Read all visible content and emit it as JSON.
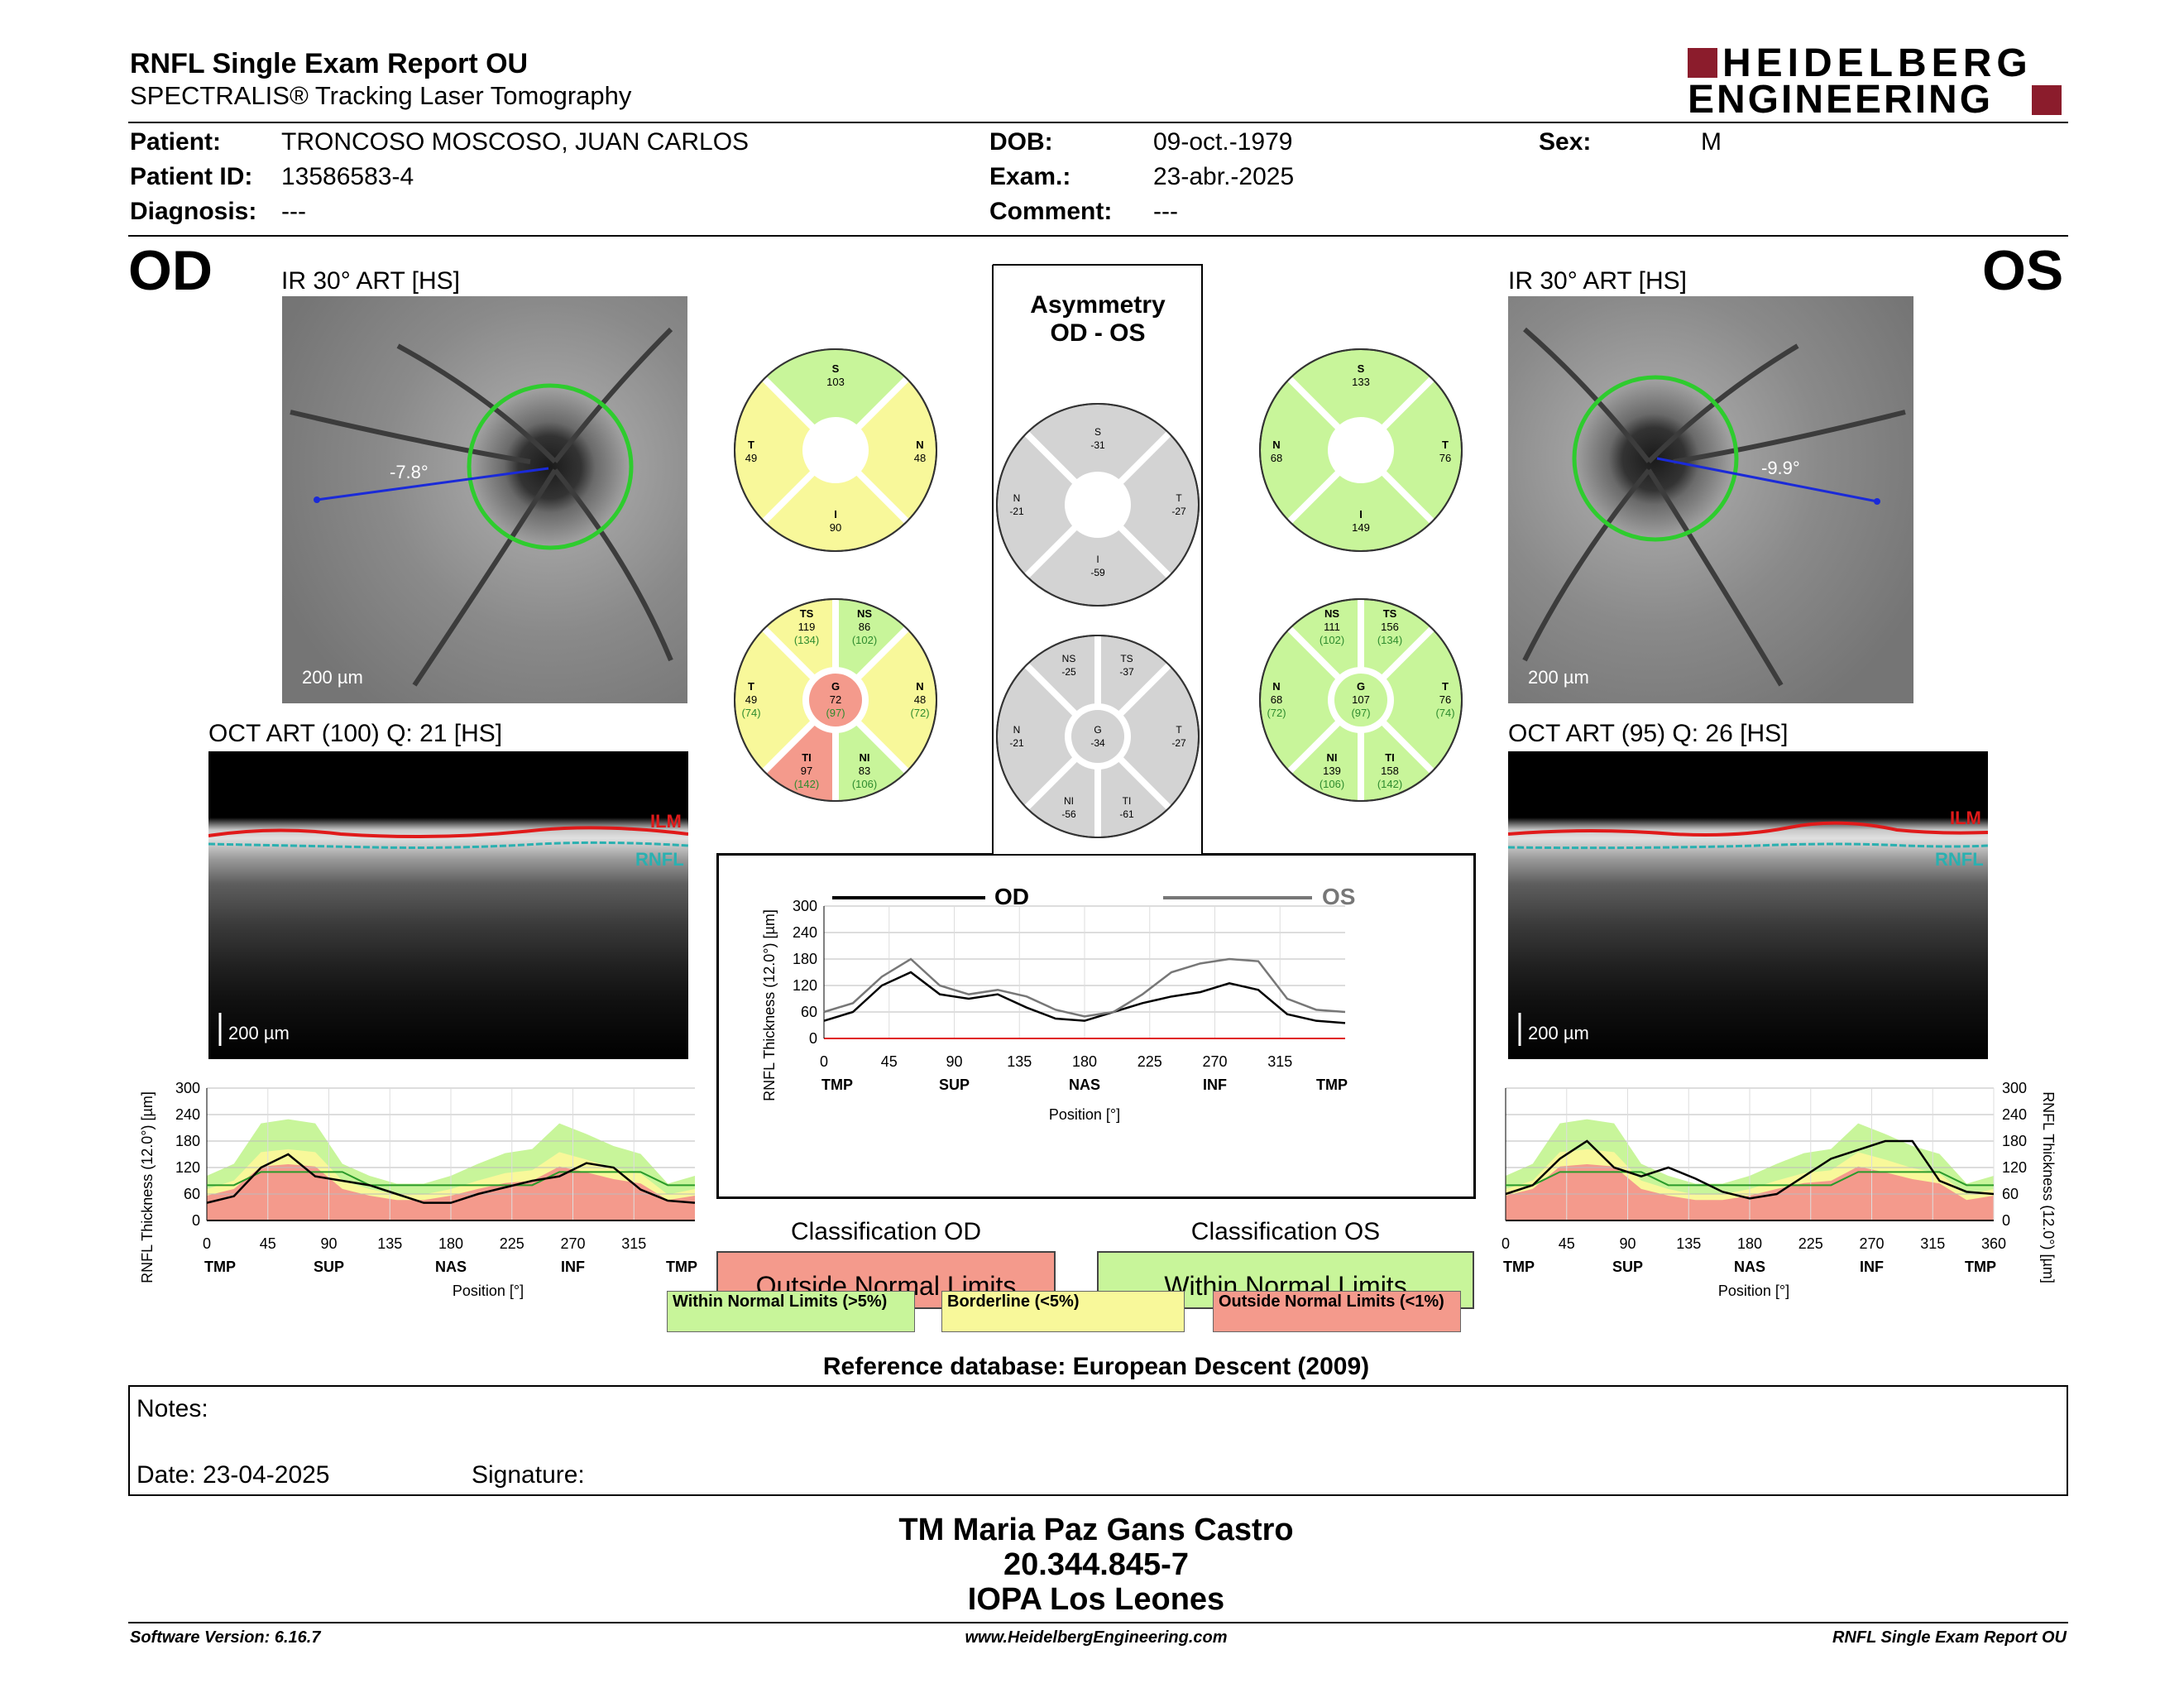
{
  "header": {
    "title": "RNFL Single Exam Report OU",
    "subtitle": "SPECTRALIS® Tracking Laser Tomography",
    "brand_line1": "HEIDELBERG",
    "brand_line2": "ENGINEERING",
    "brand_color": "#8b1c2c"
  },
  "patient": {
    "patient_label": "Patient:",
    "patient_value": "TRONCOSO MOSCOSO, JUAN CARLOS",
    "id_label": "Patient ID:",
    "id_value": "13586583-4",
    "diagnosis_label": "Diagnosis:",
    "diagnosis_value": "---",
    "dob_label": "DOB:",
    "dob_value": "09-oct.-1979",
    "exam_label": "Exam.:",
    "exam_value": "23-abr.-2025",
    "comment_label": "Comment:",
    "comment_value": "---",
    "sex_label": "Sex:",
    "sex_value": "M"
  },
  "od": {
    "eye": "OD",
    "ir_label": "IR 30° ART [HS]",
    "angle": "-7.8°",
    "scale": "200 µm",
    "oct_label": "OCT ART (100) Q: 21 [HS]",
    "oct_scale": "200 µm",
    "ilm": "ILM",
    "rnfl": "RNFL",
    "sectors4": {
      "S": "103",
      "T": "49",
      "N": "48",
      "I": "90"
    },
    "sectors6": {
      "TS": "119",
      "TS_ref": "(134)",
      "NS": "86",
      "NS_ref": "(102)",
      "T": "49",
      "T_ref": "(74)",
      "G": "72",
      "G_ref": "(97)",
      "N": "48",
      "N_ref": "(72)",
      "TI": "97",
      "TI_ref": "(142)",
      "NI": "83",
      "NI_ref": "(106)"
    },
    "classification_title": "Classification OD",
    "classification": "Outside Normal Limits"
  },
  "os": {
    "eye": "OS",
    "ir_label": "IR 30° ART [HS]",
    "angle": "-9.9°",
    "scale": "200 µm",
    "oct_label": "OCT ART (95) Q: 26 [HS]",
    "oct_scale": "200 µm",
    "ilm": "ILM",
    "rnfl": "RNFL",
    "sectors4": {
      "S": "133",
      "N": "68",
      "T": "76",
      "I": "149"
    },
    "sectors6": {
      "NS": "111",
      "NS_ref": "(102)",
      "TS": "156",
      "TS_ref": "(134)",
      "N": "68",
      "N_ref": "(72)",
      "G": "107",
      "G_ref": "(97)",
      "T": "76",
      "T_ref": "(74)",
      "NI": "139",
      "NI_ref": "(106)",
      "TI": "158",
      "TI_ref": "(142)"
    },
    "classification_title": "Classification OS",
    "classification": "Within Normal Limits"
  },
  "asymmetry": {
    "title1": "Asymmetry",
    "title2": "OD - OS",
    "sectors4": {
      "S": "-31",
      "N": "-21",
      "T": "-27",
      "I": "-59"
    },
    "sectors6": {
      "NS": "-25",
      "TS": "-37",
      "N": "-21",
      "G": "-34",
      "T": "-27",
      "NI": "-56",
      "TI": "-61"
    }
  },
  "labels": {
    "S": "S",
    "T": "T",
    "N": "N",
    "I": "I",
    "TS": "TS",
    "NS": "NS",
    "G": "G",
    "TI": "TI",
    "NI": "NI"
  },
  "chart_data": [
    {
      "type": "line",
      "title": "",
      "ylabel": "RNFL Thickness (12.0°) [µm]",
      "xlabel": "Position [°]",
      "ylim": [
        0,
        300
      ],
      "yticks": [
        "0",
        "60",
        "120",
        "180",
        "240",
        "300"
      ],
      "xticks": [
        "0",
        "45",
        "90",
        "135",
        "180",
        "225",
        "270",
        "315"
      ],
      "sector_labels": [
        "TMP",
        "SUP",
        "NAS",
        "INF",
        "TMP"
      ],
      "x": [
        0,
        20,
        40,
        60,
        80,
        100,
        120,
        140,
        160,
        180,
        200,
        220,
        240,
        260,
        280,
        300,
        320,
        340,
        360
      ],
      "series": [
        {
          "name": "OD",
          "values": [
            40,
            55,
            120,
            150,
            100,
            90,
            80,
            60,
            40,
            40,
            60,
            75,
            90,
            100,
            130,
            120,
            70,
            45,
            40
          ]
        }
      ]
    },
    {
      "type": "line",
      "title": "",
      "ylabel": "RNFL Thickness (12.0°) [µm]",
      "xlabel": "Position [°]",
      "ylim": [
        0,
        300
      ],
      "yticks": [
        "0",
        "60",
        "120",
        "180",
        "240",
        "300"
      ],
      "xticks": [
        "0",
        "45",
        "90",
        "135",
        "180",
        "225",
        "270",
        "315"
      ],
      "sector_labels": [
        "TMP",
        "SUP",
        "NAS",
        "INF",
        "TMP"
      ],
      "x": [
        0,
        20,
        40,
        60,
        80,
        100,
        120,
        140,
        160,
        180,
        200,
        220,
        240,
        260,
        280,
        300,
        320,
        340,
        360
      ],
      "series": [
        {
          "name": "OD",
          "values": [
            40,
            60,
            120,
            150,
            100,
            90,
            100,
            70,
            45,
            40,
            60,
            80,
            95,
            105,
            125,
            110,
            55,
            40,
            35
          ]
        },
        {
          "name": "OS",
          "values": [
            60,
            80,
            140,
            180,
            120,
            100,
            110,
            95,
            65,
            50,
            60,
            100,
            150,
            170,
            180,
            175,
            90,
            65,
            60
          ]
        }
      ]
    },
    {
      "type": "line",
      "title": "",
      "ylabel": "RNFL Thickness (12.0°) [µm]",
      "xlabel": "Position [°]",
      "ylim": [
        0,
        300
      ],
      "yticks": [
        "0",
        "60",
        "120",
        "180",
        "240",
        "300"
      ],
      "xticks": [
        "0",
        "45",
        "90",
        "135",
        "180",
        "225",
        "270",
        "315",
        "360"
      ],
      "sector_labels": [
        "TMP",
        "SUP",
        "NAS",
        "INF",
        "TMP"
      ],
      "x": [
        0,
        20,
        40,
        60,
        80,
        100,
        120,
        140,
        160,
        180,
        200,
        220,
        240,
        260,
        280,
        300,
        320,
        340,
        360
      ],
      "series": [
        {
          "name": "OS",
          "values": [
            60,
            80,
            140,
            180,
            120,
            100,
            120,
            95,
            65,
            50,
            60,
            100,
            140,
            160,
            180,
            180,
            90,
            65,
            60
          ]
        }
      ]
    }
  ],
  "chart_legend": {
    "od": "OD",
    "os": "OS"
  },
  "legend": {
    "within": "Within Normal Limits (>5%)",
    "borderline": "Borderline (<5%)",
    "outside": "Outside Normal Limits (<1%)"
  },
  "colors": {
    "green": "#c8f59a",
    "yellow": "#f8f89a",
    "red": "#f49a8c",
    "gray": "#d3d3d3"
  },
  "reference": "Reference database: European Descent (2009)",
  "notes": {
    "notes_label": "Notes:",
    "date_label": "Date: 23-04-2025",
    "signature_label": "Signature:"
  },
  "signatory": {
    "name": "TM Maria Paz Gans Castro",
    "rut": "20.344.845-7",
    "clinic": "IOPA Los Leones"
  },
  "footer": {
    "software": "Software Version: 6.16.7",
    "website": "www.HeidelbergEngineering.com",
    "report": "RNFL Single Exam Report OU"
  }
}
